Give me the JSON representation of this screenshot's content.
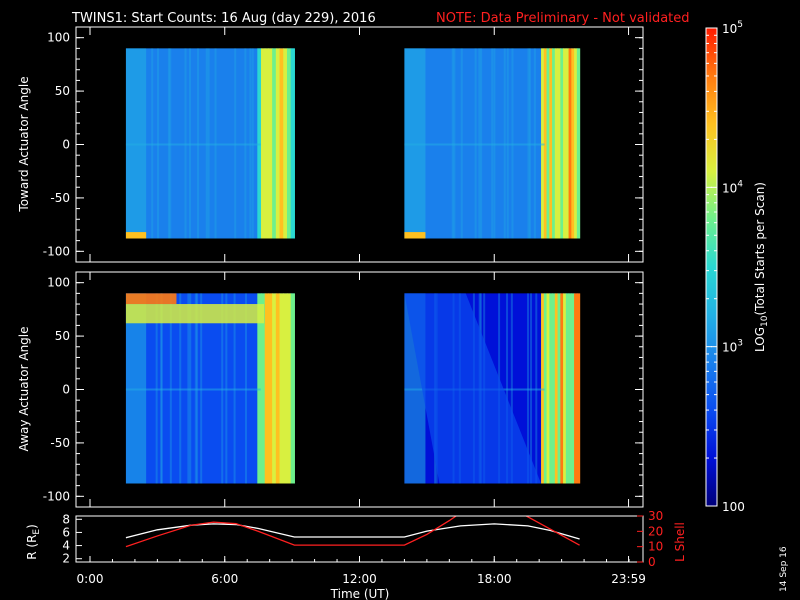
{
  "title": "TWINS1: Start Counts: 16 Aug (day 229), 2016",
  "note": "NOTE: Data Preliminary - Not validated",
  "footer_date": "14 Sep 16",
  "chart_data": [
    {
      "type": "heatmap",
      "ylabel": "Toward Actuator Angle",
      "ylim": [
        -110,
        110
      ],
      "yticks": [
        100,
        50,
        0,
        -50,
        -100
      ],
      "y_extent": [
        -88,
        90
      ],
      "data_blocks": [
        {
          "start_hours": 1.6,
          "end_hours": 9.1
        },
        {
          "start_hours": 14.0,
          "end_hours": 21.8
        }
      ],
      "colorscale": {
        "min": 100,
        "max": 100000,
        "log": true
      }
    },
    {
      "type": "heatmap",
      "ylabel": "Away Actuator Angle",
      "ylim": [
        -110,
        110
      ],
      "yticks": [
        100,
        50,
        0,
        -50,
        -100
      ],
      "y_extent": [
        -88,
        90
      ],
      "data_blocks": [
        {
          "start_hours": 1.6,
          "end_hours": 9.1
        },
        {
          "start_hours": 14.0,
          "end_hours": 21.8
        }
      ],
      "colorscale": {
        "min": 100,
        "max": 100000,
        "log": true
      }
    },
    {
      "type": "line",
      "xlabel": "Time (UT)",
      "ylabel_left": "R (R",
      "ylabel_left_sub": "E",
      "ylabel_left_end": ")",
      "ylabel_right": "L Shell",
      "ylim_left": [
        1.5,
        8.5
      ],
      "ylim_right": [
        0,
        30
      ],
      "yticks_left": [
        8,
        6,
        4,
        2
      ],
      "yticks_right": [
        30,
        20,
        10,
        0
      ],
      "xlim_hours": [
        0,
        24
      ],
      "xtick_labels": [
        "0:00",
        "6:00",
        "12:00",
        "18:00",
        "23:59"
      ],
      "xtick_hours": [
        0,
        6,
        12,
        18,
        23.98
      ],
      "series": [
        {
          "name": "",
          "color": "#ffffff",
          "axis": "left",
          "x": [
            1.6,
            3,
            4.5,
            5.5,
            6.5,
            7.5,
            9.1,
            12,
            14.0,
            15,
            16.5,
            18,
            19.5,
            20.5,
            21.8
          ],
          "y": [
            5.2,
            6.4,
            7.1,
            7.3,
            7.2,
            6.6,
            5.3,
            5.3,
            5.3,
            6.2,
            7.0,
            7.3,
            7.0,
            6.3,
            5.0
          ]
        },
        {
          "name": "",
          "color": "#ff2020",
          "axis": "right",
          "x": [
            1.6,
            3,
            4.5,
            5.5,
            6.5,
            7.5,
            9.1,
            12,
            14.0,
            15,
            16.0,
            16.4,
            19.3,
            19.8,
            21.8
          ],
          "y": [
            10,
            17,
            24,
            26,
            25,
            20,
            11,
            11,
            11,
            18,
            27,
            31,
            31,
            27,
            11
          ]
        }
      ]
    }
  ],
  "colorbar": {
    "label": "LOG",
    "label_sub": "10",
    "label_end": "(Total Starts per Scan)",
    "ticks": [
      {
        "value": 100000,
        "mantissa": "10",
        "exp": "5"
      },
      {
        "value": 10000,
        "mantissa": "10",
        "exp": "4"
      },
      {
        "value": 1000,
        "mantissa": "10",
        "exp": "3"
      },
      {
        "value": 100,
        "mantissa": "100",
        "exp": ""
      }
    ],
    "colors": [
      "#00007a",
      "#0010d8",
      "#0a4cf0",
      "#1a80ec",
      "#22b0e4",
      "#2ad8d2",
      "#6ef08c",
      "#d8f040",
      "#ffc020",
      "#ff7a10",
      "#ff1a00"
    ]
  }
}
